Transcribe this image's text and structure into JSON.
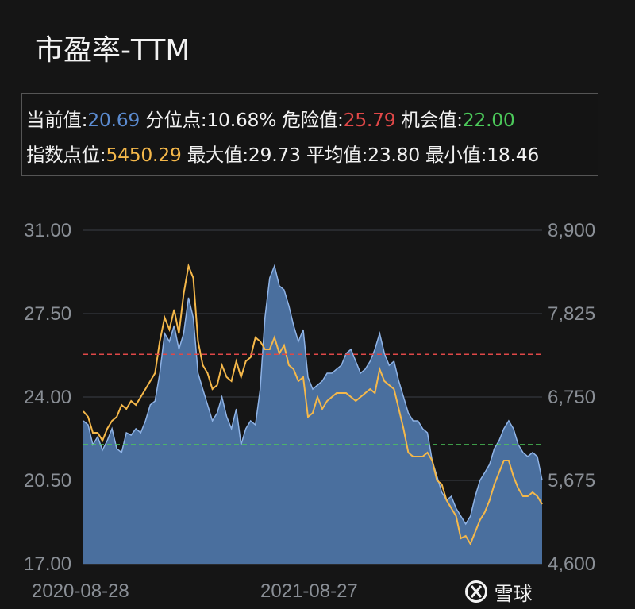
{
  "header": {
    "title": "市盈率-TTM"
  },
  "stats": {
    "current_label": "当前值:",
    "current_value": "20.69",
    "percentile_label": "分位点:",
    "percentile_value": "10.68%",
    "danger_label": "危险值:",
    "danger_value": "25.79",
    "opportunity_label": "机会值:",
    "opportunity_value": "22.00",
    "index_label": "指数点位:",
    "index_value": "5450.29",
    "max_label": "最大值:",
    "max_value": "29.73",
    "avg_label": "平均值:",
    "avg_value": "23.80",
    "min_label": "最小值:",
    "min_value": "18.46"
  },
  "colors": {
    "current": "#5b8bd0",
    "danger": "#e04848",
    "opportunity": "#4cc95a",
    "index": "#f5b84a",
    "area_fill": "#4a6f9e",
    "area_line": "#8fb3e6",
    "grid": "#3a4048"
  },
  "watermark": {
    "text": "雪球",
    "logo": "xueqiu-logo-icon"
  },
  "chart_data": {
    "type": "area+line",
    "x_tick_labels": [
      "2020-08-28",
      "2021-08-27"
    ],
    "left_axis": {
      "ylim": [
        17,
        31
      ],
      "ticks": [
        "31.00",
        "27.50",
        "24.00",
        "20.50",
        "17.00"
      ]
    },
    "right_axis": {
      "ylim": [
        4600,
        8900
      ],
      "ticks": [
        "8,900",
        "7,825",
        "6,750",
        "5,675",
        "4,600"
      ]
    },
    "grid": true,
    "reference_lines": [
      {
        "value": 25.79,
        "color": "#e04848",
        "style": "dashed"
      },
      {
        "value": 22.0,
        "color": "#4cc95a",
        "style": "dashed"
      }
    ],
    "series": [
      {
        "axis": "left",
        "type": "area",
        "color": "#4a6f9e",
        "values": [
          23.0,
          22.83,
          22.0,
          22.33,
          21.77,
          22.17,
          22.67,
          21.83,
          21.67,
          22.5,
          22.4,
          22.67,
          22.5,
          23.0,
          23.67,
          23.83,
          25.0,
          26.67,
          26.33,
          27.0,
          26.0,
          26.67,
          28.17,
          27.33,
          25.0,
          24.33,
          23.67,
          23.0,
          23.33,
          24.0,
          23.17,
          22.67,
          23.5,
          22.0,
          22.67,
          23.0,
          22.83,
          24.33,
          27.33,
          29.0,
          29.5,
          28.67,
          28.5,
          27.83,
          27.0,
          26.33,
          26.83,
          24.83,
          24.33,
          24.5,
          24.67,
          25.0,
          25.0,
          25.17,
          25.33,
          25.83,
          26.0,
          25.5,
          25.0,
          25.17,
          25.5,
          26.0,
          26.67,
          25.83,
          25.33,
          25.5,
          24.67,
          24.0,
          23.33,
          23.0,
          23.0,
          22.67,
          22.5,
          21.33,
          20.67,
          20.0,
          19.67,
          19.83,
          19.33,
          19.0,
          18.67,
          19.0,
          19.83,
          20.5,
          20.83,
          21.17,
          21.83,
          22.17,
          22.67,
          23.0,
          22.67,
          22.0,
          21.67,
          21.5,
          21.67,
          21.5,
          20.5
        ]
      },
      {
        "axis": "right",
        "type": "line",
        "color": "#f5b84a",
        "values": [
          6566,
          6494,
          6289,
          6289,
          6187,
          6340,
          6443,
          6494,
          6648,
          6596,
          6699,
          6648,
          6750,
          6852,
          6955,
          7057,
          7467,
          7774,
          7620,
          7876,
          7569,
          8081,
          8439,
          8286,
          7467,
          7160,
          7057,
          6852,
          6904,
          7160,
          7006,
          6955,
          7211,
          7006,
          7211,
          7262,
          7518,
          7467,
          7364,
          7364,
          7518,
          7313,
          7415,
          7160,
          7108,
          6955,
          7006,
          6494,
          6545,
          6750,
          6596,
          6699,
          6750,
          6801,
          6801,
          6801,
          6750,
          6699,
          6750,
          6801,
          6852,
          6801,
          7108,
          6955,
          6904,
          6852,
          6596,
          6340,
          6033,
          5982,
          5982,
          5982,
          6033,
          5931,
          5675,
          5624,
          5419,
          5317,
          5214,
          4928,
          4958,
          4856,
          5010,
          5163,
          5265,
          5419,
          5624,
          5777,
          5931,
          5931,
          5726,
          5573,
          5470,
          5470,
          5521,
          5470,
          5368
        ]
      }
    ]
  }
}
